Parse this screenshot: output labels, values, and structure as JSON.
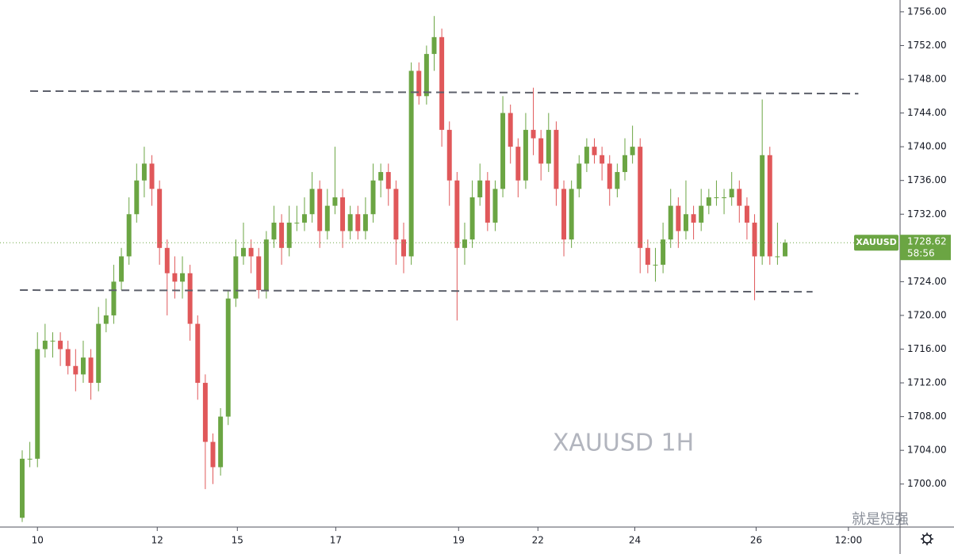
{
  "chart_data": {
    "type": "candlestick",
    "symbol": "XAUUSD",
    "watermark": "XAUUSD 1H",
    "countdown": "58:56",
    "source_mark": "就是短强",
    "up_color": "#6ba543",
    "down_color": "#e0585a",
    "x": [
      0,
      1,
      2,
      3,
      4,
      5,
      6,
      7,
      8,
      9,
      10,
      11,
      12,
      13,
      14,
      15,
      16,
      17,
      18,
      19,
      20,
      21,
      22,
      23,
      24,
      25,
      26,
      27,
      28,
      29,
      30,
      31,
      32,
      33,
      34,
      35,
      36,
      37,
      38,
      39,
      40,
      41,
      42,
      43,
      44,
      45,
      46,
      47,
      48,
      49,
      50,
      51,
      52,
      53,
      54,
      55,
      56,
      57,
      58,
      59,
      60,
      61,
      62,
      63,
      64,
      65,
      66,
      67,
      68,
      69,
      70,
      71,
      72,
      73,
      74,
      75,
      76,
      77,
      78,
      79,
      80,
      81,
      82,
      83,
      84,
      85,
      86,
      87,
      88,
      89,
      90,
      91,
      92,
      93,
      94,
      95,
      96,
      97,
      98,
      99,
      100
    ],
    "open": [
      1696,
      1703,
      1703,
      1716,
      1717,
      1717,
      1716,
      1714,
      1713,
      1715,
      1712,
      1719,
      1720,
      1724,
      1727,
      1732,
      1736,
      1738,
      1735,
      1728,
      1725,
      1724,
      1725,
      1719,
      1712,
      1705,
      1702,
      1708,
      1722,
      1727,
      1728,
      1727,
      1723,
      1729,
      1731,
      1728,
      1731,
      1731,
      1732,
      1735,
      1730,
      1733,
      1734,
      1730,
      1732,
      1730,
      1732,
      1736,
      1737,
      1735,
      1729,
      1727,
      1749,
      1746,
      1751,
      1753,
      1742,
      1736,
      1728,
      1729,
      1734,
      1736,
      1731,
      1735,
      1744,
      1740,
      1736,
      1742,
      1741,
      1738,
      1742,
      1735,
      1729,
      1735,
      1738,
      1740,
      1739,
      1738,
      1735,
      1737,
      1739,
      1740,
      1728,
      1726,
      1726,
      1729,
      1733,
      1730,
      1732,
      1731,
      1733,
      1734,
      1734,
      1734,
      1735,
      1733,
      1731,
      1727,
      1739,
      1727,
      1727
    ],
    "high": [
      1704,
      1705,
      1718,
      1719,
      1718,
      1718,
      1717,
      1716,
      1717,
      1716,
      1721,
      1722,
      1726,
      1728,
      1734,
      1738,
      1740,
      1739,
      1736,
      1729,
      1727,
      1727,
      1726,
      1720,
      1713,
      1706,
      1709,
      1723,
      1729,
      1731,
      1729,
      1728,
      1730,
      1733,
      1732,
      1733,
      1733,
      1734,
      1737,
      1736,
      1735,
      1740,
      1735,
      1733,
      1733,
      1734,
      1738,
      1738,
      1738,
      1736,
      1731,
      1750,
      1750,
      1752,
      1755.5,
      1754,
      1743,
      1737,
      1731,
      1736,
      1738,
      1737,
      1736,
      1746,
      1745,
      1741,
      1744,
      1747,
      1742,
      1744,
      1743,
      1736,
      1736,
      1739,
      1741,
      1741,
      1740,
      1739,
      1738,
      1741,
      1742.5,
      1741,
      1729,
      1728,
      1731,
      1735,
      1734,
      1736,
      1733,
      1735,
      1735,
      1736,
      1735,
      1737,
      1736,
      1734,
      1732,
      1745.6,
      1740,
      1731,
      1729
    ],
    "low": [
      1695.5,
      1702,
      1702,
      1715,
      1715,
      1714,
      1713,
      1711,
      1712,
      1710,
      1711,
      1718,
      1719,
      1723,
      1726,
      1731,
      1734,
      1733,
      1726,
      1720,
      1722,
      1722,
      1717,
      1710,
      1699.4,
      1700,
      1701,
      1707,
      1721,
      1726,
      1725,
      1722,
      1722,
      1728,
      1726,
      1727,
      1730,
      1730,
      1731,
      1728,
      1729,
      1732,
      1728,
      1729,
      1729,
      1729,
      1731,
      1734,
      1733,
      1726,
      1725,
      1726,
      1745,
      1745,
      1749,
      1740,
      1733,
      1719.4,
      1726,
      1728,
      1733,
      1730,
      1730,
      1734,
      1738,
      1734,
      1735,
      1739,
      1736,
      1737,
      1733,
      1727,
      1728,
      1734,
      1737,
      1738,
      1736,
      1733,
      1734,
      1736,
      1738,
      1725,
      1725,
      1724,
      1725,
      1728,
      1728,
      1729,
      1729,
      1730,
      1732,
      1733,
      1732,
      1733,
      1731,
      1729,
      1721.8,
      1726,
      1726,
      1726,
      1727
    ],
    "close": [
      1703,
      1703,
      1716,
      1717,
      1717,
      1716,
      1714,
      1713,
      1715,
      1712,
      1719,
      1720,
      1724,
      1727,
      1732,
      1736,
      1738,
      1735,
      1728,
      1725,
      1724,
      1725,
      1719,
      1712,
      1705,
      1702,
      1708,
      1722,
      1727,
      1728,
      1727,
      1723,
      1729,
      1731,
      1728,
      1731,
      1731,
      1732,
      1735,
      1730,
      1733,
      1734,
      1730,
      1732,
      1730,
      1732,
      1736,
      1737,
      1735,
      1729,
      1727,
      1749,
      1746,
      1751,
      1753,
      1742,
      1736,
      1728,
      1729,
      1734,
      1736,
      1731,
      1735,
      1744,
      1740,
      1736,
      1742,
      1741,
      1738,
      1742,
      1735,
      1729,
      1735,
      1738,
      1740,
      1739,
      1738,
      1735,
      1737,
      1739,
      1740,
      1728,
      1726,
      1726,
      1729,
      1733,
      1730,
      1732,
      1731,
      1733,
      1734,
      1734,
      1734,
      1735,
      1733,
      1731,
      1727,
      1739,
      1727,
      1727,
      1728.62
    ],
    "xlim": [
      -2.91,
      115.07
    ],
    "xticks": [
      {
        "value": 2,
        "label": "10"
      },
      {
        "value": 17.7,
        "label": "12"
      },
      {
        "value": 28.2,
        "label": "15"
      },
      {
        "value": 41.1,
        "label": "17"
      },
      {
        "value": 57.2,
        "label": "19"
      },
      {
        "value": 67.6,
        "label": "22"
      },
      {
        "value": 80.3,
        "label": "24"
      },
      {
        "value": 96.2,
        "label": "26"
      },
      {
        "value": 108.3,
        "label": "12:00"
      }
    ],
    "ylim": [
      1694.9,
      1757.4
    ],
    "yticks": [
      {
        "value": 1700,
        "label": "1700.00"
      },
      {
        "value": 1704,
        "label": "1704.00"
      },
      {
        "value": 1708,
        "label": "1708.00"
      },
      {
        "value": 1712,
        "label": "1712.00"
      },
      {
        "value": 1716,
        "label": "1716.00"
      },
      {
        "value": 1720,
        "label": "1720.00"
      },
      {
        "value": 1724,
        "label": "1724.00"
      },
      {
        "value": 1728,
        "label": "1728.00"
      },
      {
        "value": 1732,
        "label": "1732.00"
      },
      {
        "value": 1736,
        "label": "1736.00"
      },
      {
        "value": 1740,
        "label": "1740.00"
      },
      {
        "value": 1744,
        "label": "1744.00"
      },
      {
        "value": 1748,
        "label": "1748.00"
      },
      {
        "value": 1752,
        "label": "1752.00"
      },
      {
        "value": 1756,
        "label": "1756.00"
      }
    ],
    "trend_lines": [
      {
        "x": [
          1.04,
          109.6
        ],
        "y": [
          1746.6,
          1746.3
        ]
      },
      {
        "x": [
          -0.3,
          103.6
        ],
        "y": [
          1723.0,
          1722.8
        ]
      }
    ]
  }
}
